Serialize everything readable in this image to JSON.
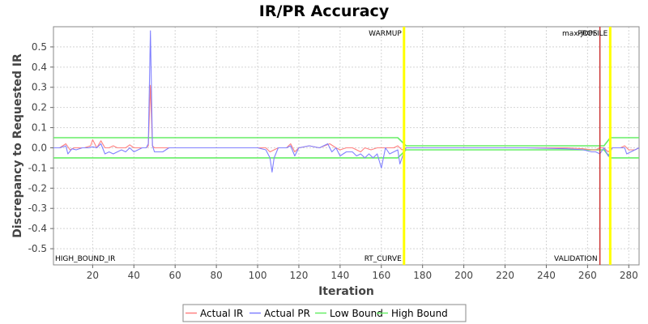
{
  "chart_data": {
    "type": "line",
    "title": "IR/PR Accuracy",
    "xlabel": "Iteration",
    "ylabel": "Discrepancy to Requested IR",
    "xlim": [
      1,
      285
    ],
    "ylim": [
      -0.58,
      0.6
    ],
    "xticks": [
      20,
      40,
      60,
      80,
      100,
      120,
      140,
      160,
      180,
      200,
      220,
      240,
      260,
      280
    ],
    "yticks": [
      0.5,
      0.4,
      0.3,
      0.2,
      0.1,
      0.0,
      -0.1,
      -0.2,
      -0.3,
      -0.4,
      -0.5
    ],
    "ytick_labels": [
      "0.5",
      "0.4",
      "0.3",
      "0.2",
      "0.1",
      "0.0",
      "-0.1",
      "-0.2",
      "-0.3",
      "-0.4",
      "-0.5"
    ],
    "grid": true,
    "legend_position": "bottom",
    "markers": [
      {
        "x": 171,
        "color": "#ffff00",
        "top_label": "WARMUP",
        "bottom_label": "RT_CURVE"
      },
      {
        "x": 266,
        "color": "#cc3333",
        "top_label": "max-jOPS",
        "bottom_label": "VALIDATION"
      },
      {
        "x": 271,
        "color": "#ffff00",
        "top_label": "PROFILE",
        "bottom_label": ""
      }
    ],
    "corner_label": "HIGH_BOUND_IR",
    "series": [
      {
        "name": "Actual IR",
        "color": "#ff8080",
        "x": [
          1,
          4,
          7,
          9,
          11,
          13,
          16,
          19,
          20,
          22,
          24,
          26,
          28,
          30,
          32,
          34,
          36,
          38,
          40,
          42,
          44,
          46,
          47,
          48,
          49,
          50,
          52,
          54,
          57,
          60,
          70,
          80,
          90,
          100,
          104,
          106,
          108,
          110,
          114,
          116,
          118,
          120,
          125,
          130,
          135,
          138,
          140,
          143,
          146,
          150,
          152,
          155,
          158,
          160,
          163,
          166,
          168,
          170,
          172,
          200,
          230,
          250,
          258,
          262,
          264,
          266,
          268,
          270,
          272,
          274,
          276,
          278,
          280,
          283,
          285
        ],
        "y": [
          0.0,
          0.0,
          0.02,
          -0.01,
          0.0,
          0.0,
          0.0,
          0.01,
          0.04,
          0.0,
          0.035,
          0.0,
          0.0,
          0.01,
          0.0,
          0.0,
          0.0,
          0.015,
          0.0,
          0.0,
          0.0,
          0.0,
          0.01,
          0.31,
          0.01,
          0.0,
          0.0,
          0.0,
          0.0,
          0.0,
          0.0,
          0.0,
          0.0,
          0.0,
          0.0,
          -0.02,
          -0.01,
          0.0,
          0.0,
          0.02,
          -0.02,
          0.0,
          0.01,
          0.0,
          0.02,
          0.0,
          -0.01,
          0.0,
          0.0,
          -0.02,
          0.0,
          -0.01,
          0.0,
          0.0,
          0.0,
          0.0,
          0.01,
          -0.01,
          0.0,
          0.0,
          0.0,
          0.0,
          -0.005,
          -0.01,
          -0.01,
          0.0,
          0.0,
          -0.02,
          0.0,
          0.0,
          0.0,
          0.01,
          -0.01,
          -0.01,
          0.0
        ]
      },
      {
        "name": "Actual PR",
        "color": "#8080ff",
        "x": [
          1,
          4,
          7,
          8,
          10,
          12,
          15,
          18,
          20,
          22,
          24,
          26,
          28,
          30,
          32,
          34,
          36,
          38,
          40,
          42,
          44,
          46,
          47,
          48,
          49,
          50,
          52,
          54,
          57,
          60,
          70,
          80,
          90,
          100,
          104,
          106,
          107,
          108,
          110,
          114,
          116,
          118,
          120,
          125,
          130,
          134,
          136,
          138,
          140,
          143,
          146,
          148,
          150,
          152,
          154,
          156,
          158,
          160,
          162,
          164,
          166,
          168,
          169,
          171,
          172,
          200,
          230,
          250,
          258,
          262,
          264,
          266,
          268,
          270,
          272,
          274,
          276,
          278,
          279,
          281,
          283,
          285
        ],
        "y": [
          0.0,
          0.0,
          0.01,
          -0.03,
          -0.005,
          -0.01,
          0.0,
          0.0,
          0.005,
          0.0,
          0.02,
          -0.03,
          -0.02,
          -0.03,
          -0.02,
          -0.01,
          -0.02,
          0.0,
          -0.02,
          -0.01,
          0.0,
          0.0,
          0.02,
          0.58,
          0.01,
          -0.02,
          -0.02,
          -0.02,
          0.0,
          0.0,
          0.0,
          0.0,
          0.0,
          0.0,
          -0.01,
          -0.05,
          -0.12,
          -0.05,
          0.0,
          0.0,
          0.01,
          -0.04,
          0.0,
          0.01,
          0.0,
          0.02,
          -0.02,
          0.0,
          -0.04,
          -0.02,
          -0.02,
          -0.04,
          -0.03,
          -0.05,
          -0.03,
          -0.05,
          -0.03,
          -0.1,
          0.0,
          -0.03,
          -0.02,
          -0.01,
          -0.08,
          -0.02,
          0.0,
          0.0,
          0.0,
          -0.005,
          -0.01,
          -0.02,
          -0.02,
          -0.03,
          0.0,
          -0.04,
          0.0,
          0.0,
          0.0,
          0.0,
          -0.03,
          -0.02,
          -0.01,
          0.0
        ]
      },
      {
        "name": "Low Bound",
        "color": "#66ee66",
        "x": [
          1,
          168,
          172,
          268,
          271,
          285
        ],
        "y": [
          -0.05,
          -0.05,
          -0.01,
          -0.01,
          -0.05,
          -0.05
        ]
      },
      {
        "name": "High Bound",
        "color": "#66ee66",
        "x": [
          1,
          168,
          172,
          268,
          271,
          285
        ],
        "y": [
          0.05,
          0.05,
          0.01,
          0.01,
          0.05,
          0.05
        ]
      }
    ]
  }
}
